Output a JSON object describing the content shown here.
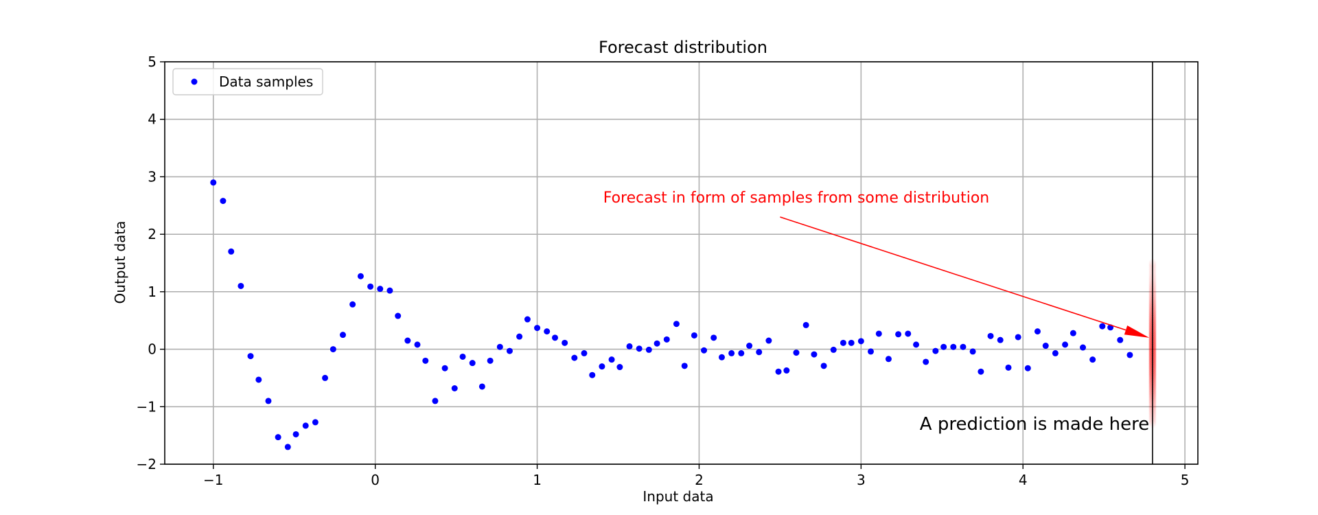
{
  "chart_data": {
    "type": "scatter",
    "title": "Forecast distribution",
    "xlabel": "Input data",
    "ylabel": "Output data",
    "xlim": [
      -1.3,
      5.08
    ],
    "ylim": [
      -2,
      5
    ],
    "xticks": [
      -1,
      0,
      1,
      2,
      3,
      4,
      5
    ],
    "yticks": [
      -2,
      -1,
      0,
      1,
      2,
      3,
      4,
      5
    ],
    "grid": true,
    "legend": {
      "placement": "top-left",
      "entries": [
        "Data samples"
      ]
    },
    "series": [
      {
        "name": "Data samples",
        "color": "#0000ff",
        "x": [
          -1.0,
          -0.94,
          -0.89,
          -0.83,
          -0.77,
          -0.72,
          -0.66,
          -0.6,
          -0.54,
          -0.49,
          -0.43,
          -0.37,
          -0.31,
          -0.26,
          -0.2,
          -0.14,
          -0.09,
          -0.03,
          0.03,
          0.09,
          0.14,
          0.2,
          0.26,
          0.31,
          0.37,
          0.43,
          0.49,
          0.54,
          0.6,
          0.66,
          0.71,
          0.77,
          0.83,
          0.89,
          0.94,
          1.0,
          1.06,
          1.11,
          1.17,
          1.23,
          1.29,
          1.34,
          1.4,
          1.46,
          1.51,
          1.57,
          1.63,
          1.69,
          1.74,
          1.8,
          1.86,
          1.91,
          1.97,
          2.03,
          2.09,
          2.14,
          2.2,
          2.26,
          2.31,
          2.37,
          2.43,
          2.49,
          2.54,
          2.6,
          2.66,
          2.71,
          2.77,
          2.83,
          2.89,
          2.94,
          3.0,
          3.06,
          3.11,
          3.17,
          3.23,
          3.29,
          3.34,
          3.4,
          3.46,
          3.51,
          3.57,
          3.63,
          3.69,
          3.74,
          3.8,
          3.86,
          3.91,
          3.97,
          4.03,
          4.09,
          4.14,
          4.2,
          4.26,
          4.31,
          4.37,
          4.43,
          4.49,
          4.54,
          4.6,
          4.66
        ],
        "y": [
          2.9,
          2.58,
          1.7,
          1.1,
          -0.12,
          -0.53,
          -0.9,
          -1.53,
          -1.7,
          -1.48,
          -1.33,
          -1.27,
          -0.5,
          0.0,
          0.25,
          0.78,
          1.27,
          1.09,
          1.05,
          1.02,
          0.58,
          0.15,
          0.08,
          -0.2,
          -0.9,
          -0.33,
          -0.68,
          -0.13,
          -0.24,
          -0.65,
          -0.2,
          0.04,
          -0.03,
          0.22,
          0.52,
          0.37,
          0.31,
          0.2,
          0.11,
          -0.15,
          -0.07,
          -0.45,
          -0.3,
          -0.18,
          -0.31,
          0.05,
          0.01,
          -0.01,
          0.1,
          0.17,
          0.44,
          -0.29,
          0.24,
          -0.02,
          0.2,
          -0.14,
          -0.07,
          -0.07,
          0.06,
          -0.05,
          0.15,
          -0.39,
          -0.37,
          -0.06,
          0.42,
          -0.09,
          -0.29,
          -0.01,
          0.11,
          0.11,
          0.14,
          -0.04,
          0.27,
          -0.17,
          0.26,
          0.27,
          0.08,
          -0.22,
          -0.03,
          0.04,
          0.04,
          0.04,
          -0.04,
          -0.39,
          0.23,
          0.16,
          -0.32,
          0.21,
          -0.33,
          0.31,
          0.06,
          -0.07,
          0.08,
          0.28,
          0.03,
          -0.18,
          0.4,
          0.38,
          0.16,
          -0.1
        ]
      }
    ],
    "forecast_line_x": 4.8,
    "forecast_spread": {
      "x": 4.8,
      "y_center": 0.0,
      "y_range": [
        -1.3,
        1.5
      ],
      "color": "#ff0000"
    },
    "annotations": [
      {
        "text": "Forecast in form of samples from some distribution",
        "x": 2.6,
        "y": 2.55,
        "color": "#ff0000",
        "arrow_from": [
          2.5,
          2.3
        ],
        "arrow_to": [
          4.78,
          0.2
        ]
      },
      {
        "text": "A prediction is made here",
        "x": 4.78,
        "y": -1.4,
        "color": "#000000",
        "anchor": "end"
      }
    ]
  }
}
